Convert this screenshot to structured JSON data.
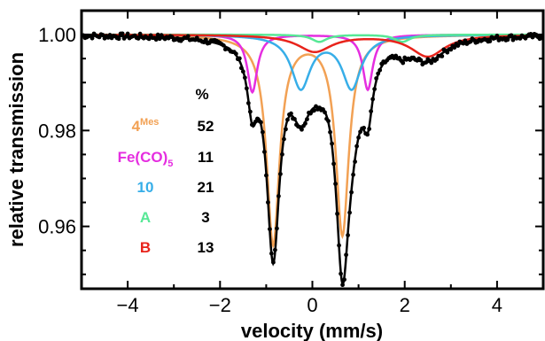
{
  "chart_data": {
    "type": "line",
    "title": "",
    "xlabel": "velocity (mm/s)",
    "ylabel": "relative transmission",
    "xlim": [
      -5,
      5
    ],
    "ylim": [
      0.947,
      1.005
    ],
    "xticks": [
      -4,
      -2,
      0,
      2,
      4
    ],
    "xtick_labels": [
      "−4",
      "−2",
      "0",
      "2",
      "4"
    ],
    "yticks": [
      0.96,
      0.98,
      1.0
    ],
    "ytick_labels": [
      "0.96",
      "0.98",
      "1.00"
    ],
    "grid": false,
    "legend": {
      "header": "%",
      "position": "left-inside",
      "entries": [
        {
          "label_main": "4",
          "label_sup": "Mes",
          "label_sub": "",
          "value": "52",
          "color": "#f2a154"
        },
        {
          "label_main": "Fe(CO)",
          "label_sup": "",
          "label_sub": "5",
          "value": "11",
          "color": "#e52ee0"
        },
        {
          "label_main": "10",
          "label_sup": "",
          "label_sub": "",
          "value": "21",
          "color": "#37aee8"
        },
        {
          "label_main": "A",
          "label_sup": "",
          "label_sub": "",
          "value": "3",
          "color": "#57e896"
        },
        {
          "label_main": "B",
          "label_sup": "",
          "label_sub": "",
          "value": "13",
          "color": "#e8231b"
        }
      ]
    },
    "components": [
      {
        "name": "4Mes",
        "color": "#f2a154",
        "lines": [
          {
            "center": -0.85,
            "depth": 0.0435,
            "hwhm": 0.17
          },
          {
            "center": 0.65,
            "depth": 0.0415,
            "hwhm": 0.17
          }
        ]
      },
      {
        "name": "Fe(CO)5",
        "color": "#e52ee0",
        "lines": [
          {
            "center": -1.3,
            "depth": 0.012,
            "hwhm": 0.13
          },
          {
            "center": 1.2,
            "depth": 0.0115,
            "hwhm": 0.13
          }
        ]
      },
      {
        "name": "10",
        "color": "#37aee8",
        "lines": [
          {
            "center": -0.25,
            "depth": 0.011,
            "hwhm": 0.25
          },
          {
            "center": 0.85,
            "depth": 0.011,
            "hwhm": 0.25
          }
        ]
      },
      {
        "name": "A",
        "color": "#57e896",
        "lines": [
          {
            "center": 0.15,
            "depth": 0.0015,
            "hwhm": 0.2
          },
          {
            "center": 1.95,
            "depth": 0.0015,
            "hwhm": 0.2
          }
        ]
      },
      {
        "name": "B",
        "color": "#e8231b",
        "lines": [
          {
            "center": 0.05,
            "depth": 0.0035,
            "hwhm": 0.45
          },
          {
            "center": 2.5,
            "depth": 0.0045,
            "hwhm": 0.45
          }
        ]
      }
    ],
    "fit_color": "#000000",
    "data_color": "#000000"
  }
}
